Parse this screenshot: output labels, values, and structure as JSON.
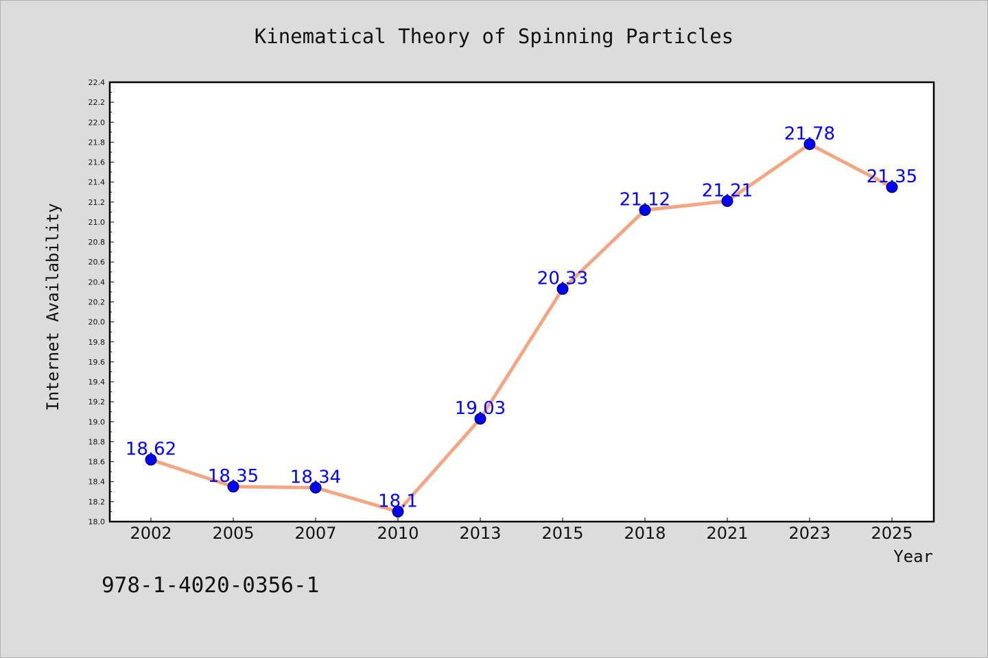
{
  "chart_data": {
    "type": "line",
    "title": "Kinematical Theory of Spinning Particles",
    "xlabel": "Year",
    "ylabel": "Internet Availability",
    "categories": [
      "2002",
      "2005",
      "2007",
      "2010",
      "2013",
      "2015",
      "2018",
      "2021",
      "2023",
      "2025"
    ],
    "series": [
      {
        "values": [
          18.62,
          18.35,
          18.34,
          18.1,
          19.03,
          20.33,
          21.12,
          21.21,
          21.78,
          21.35
        ],
        "data_labels": [
          "18.62",
          "18.35",
          "18.34",
          "18.1",
          "19.03",
          "20.33",
          "21.12",
          "21.21",
          "21.78",
          "21.35"
        ]
      }
    ],
    "ylim": [
      18.0,
      22.4
    ],
    "yticks": [
      "18.0",
      "18.2",
      "18.4",
      "18.6",
      "18.8",
      "19.0",
      "19.2",
      "19.4",
      "19.6",
      "19.8",
      "20.0",
      "20.2",
      "20.4",
      "20.6",
      "20.8",
      "21.0",
      "21.2",
      "21.4",
      "21.6",
      "21.8",
      "22.0",
      "22.2",
      "22.4"
    ],
    "grid": false,
    "legend": "none",
    "colors": {
      "line": "#f4a582",
      "marker": "#0000ff",
      "label": "#0000ff",
      "plot_background": "#ffffff",
      "figure_background": "#dcdcdc"
    }
  },
  "footer": {
    "isbn": "978-1-4020-0356-1"
  }
}
